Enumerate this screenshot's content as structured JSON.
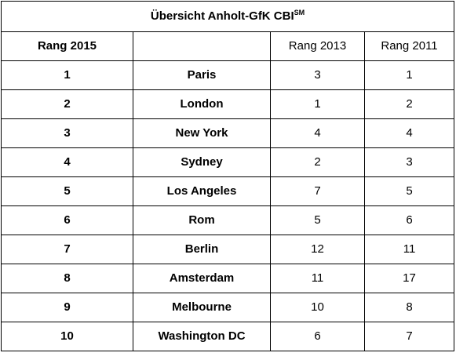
{
  "table": {
    "title": "Übersicht Anholt-GfK CBI",
    "title_superscript": "SM",
    "headers": [
      "Rang 2015",
      "",
      "Rang 2013",
      "Rang 2011"
    ],
    "rows": [
      {
        "rank_2015": "1",
        "city": "Paris",
        "rank_2013": "3",
        "rank_2011": "1"
      },
      {
        "rank_2015": "2",
        "city": "London",
        "rank_2013": "1",
        "rank_2011": "2"
      },
      {
        "rank_2015": "3",
        "city": "New York",
        "rank_2013": "4",
        "rank_2011": "4"
      },
      {
        "rank_2015": "4",
        "city": "Sydney",
        "rank_2013": "2",
        "rank_2011": "3"
      },
      {
        "rank_2015": "5",
        "city": "Los Angeles",
        "rank_2013": "7",
        "rank_2011": "5"
      },
      {
        "rank_2015": "6",
        "city": "Rom",
        "rank_2013": "5",
        "rank_2011": "6"
      },
      {
        "rank_2015": "7",
        "city": "Berlin",
        "rank_2013": "12",
        "rank_2011": "11"
      },
      {
        "rank_2015": "8",
        "city": "Amsterdam",
        "rank_2013": "11",
        "rank_2011": "17"
      },
      {
        "rank_2015": "9",
        "city": "Melbourne",
        "rank_2013": "10",
        "rank_2011": "8"
      },
      {
        "rank_2015": "10",
        "city": "Washington DC",
        "rank_2013": "6",
        "rank_2011": "7"
      }
    ]
  }
}
